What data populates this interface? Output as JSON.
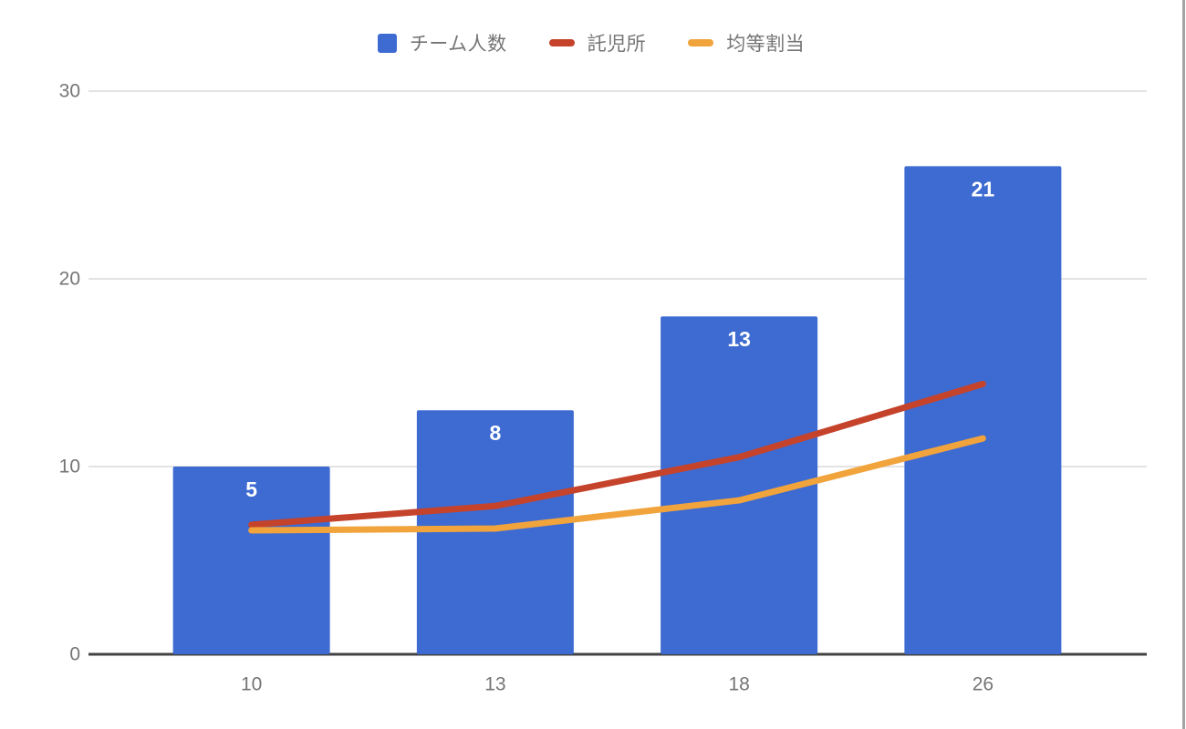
{
  "chart_data": {
    "type": "bar",
    "title": "",
    "categories": [
      "10",
      "13",
      "18",
      "26"
    ],
    "series": [
      {
        "name": "チーム人数",
        "kind": "bar",
        "color": "#3d6bd1",
        "values": [
          10,
          13,
          18,
          26
        ],
        "point_labels": [
          "5",
          "8",
          "13",
          "21"
        ],
        "point_label_color": "#ffffff"
      },
      {
        "name": "託児所",
        "kind": "line",
        "color": "#c5422b",
        "values": [
          6.9,
          7.9,
          10.5,
          14.4
        ]
      },
      {
        "name": "均等割当",
        "kind": "line",
        "color": "#f1a33c",
        "values": [
          6.6,
          6.7,
          8.2,
          11.5
        ]
      }
    ],
    "ylim": [
      0,
      30
    ],
    "yticks": [
      "0",
      "10",
      "20",
      "30"
    ],
    "grid": true,
    "legend_position": "top",
    "axis_label_color": "#757575",
    "gridline_color": "#e3e3e3",
    "baseline_color": "#424242",
    "background": "#ffffff"
  },
  "window": {
    "right_edge_color": "#a3a3a3"
  }
}
